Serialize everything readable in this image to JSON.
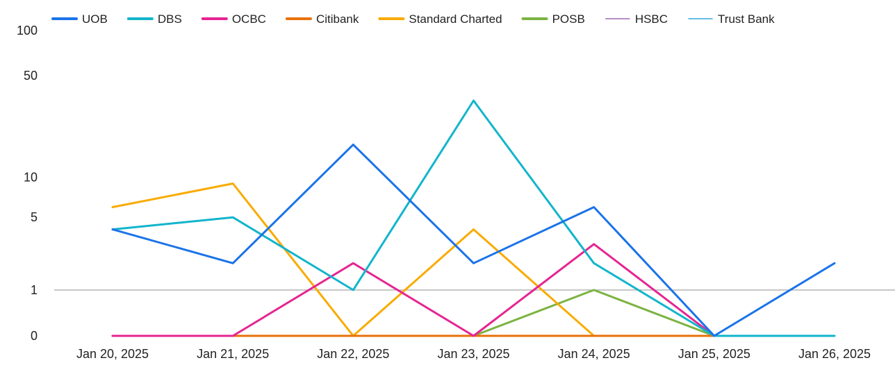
{
  "chart_data": {
    "type": "line",
    "title": "",
    "xlabel": "",
    "ylabel": "",
    "y_scale": "log1p",
    "ylim": [
      0,
      100
    ],
    "y_ticks": [
      0,
      1,
      5,
      10,
      50,
      100
    ],
    "y_tick_labels": [
      "0",
      "1",
      "5",
      "10",
      "50",
      "100"
    ],
    "categories": [
      "Jan 20, 2025",
      "Jan 21, 2025",
      "Jan 22, 2025",
      "Jan 23, 2025",
      "Jan 24, 2025",
      "Jan 25, 2025",
      "Jan 26, 2025"
    ],
    "legend_position": "top-left",
    "grid": false,
    "baseline_value": 1,
    "series": [
      {
        "name": "UOB",
        "color": "#1a73e8",
        "width": 3,
        "values": [
          4,
          2,
          17,
          2,
          6,
          0,
          2
        ]
      },
      {
        "name": "DBS",
        "color": "#12b5cb",
        "width": 3,
        "values": [
          4,
          5,
          1,
          34,
          2,
          0,
          0
        ]
      },
      {
        "name": "OCBC",
        "color": "#e52592",
        "width": 3,
        "values": [
          0,
          0,
          2,
          0,
          3,
          0,
          null
        ]
      },
      {
        "name": "Citibank",
        "color": "#e8710a",
        "width": 3,
        "values": [
          0,
          0,
          0,
          0,
          0,
          0,
          null
        ]
      },
      {
        "name": "Standard Charted",
        "color": "#f9ab00",
        "width": 3,
        "values": [
          6,
          9,
          0,
          4,
          0,
          0,
          null
        ]
      },
      {
        "name": "POSB",
        "color": "#7cb342",
        "width": 3,
        "values": [
          0,
          0,
          0,
          0,
          1,
          0,
          null
        ]
      },
      {
        "name": "HSBC",
        "color": "#9e69af",
        "width": 1.5,
        "values": [
          0,
          0,
          0,
          0,
          0,
          0,
          null
        ]
      },
      {
        "name": "Trust Bank",
        "color": "#34a8d8",
        "width": 1.5,
        "values": [
          0,
          0,
          0,
          0,
          0,
          0,
          0
        ]
      }
    ]
  }
}
